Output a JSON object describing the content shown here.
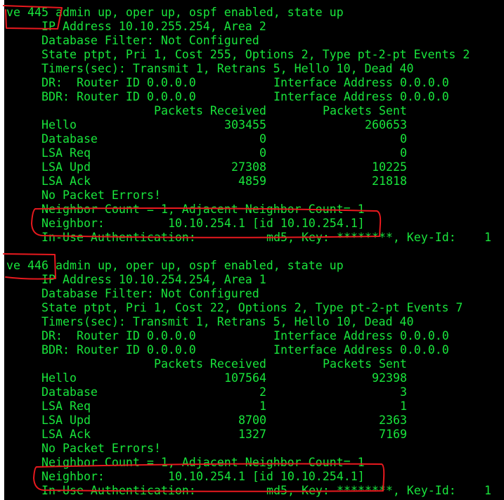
{
  "colors": {
    "background": "#000000",
    "text": "#19e53c",
    "annotation": "#e8191e"
  },
  "sections": [
    {
      "interface": "ve 445",
      "status": "admin up, oper up, ospf enabled, state up",
      "ip_line": "IP Address 10.10.255.254, Area 2",
      "filter_line": "Database Filter: Not Configured",
      "state_line": "State ptpt, Pri 1, Cost 255, Options 2, Type pt-2-pt Events 2",
      "timers_line": "Timers(sec): Transmit 1, Retrans 5, Hello 10, Dead 40",
      "dr": {
        "label": "DR:  Router ID 0.0.0.0",
        "iface": "Interface Address 0.0.0.0"
      },
      "bdr": {
        "label": "BDR: Router ID 0.0.0.0",
        "iface": "Interface Address 0.0.0.0"
      },
      "headers": {
        "received": "Packets Received",
        "sent": "Packets Sent"
      },
      "rows": [
        {
          "label": "Hello",
          "received": "303455",
          "sent": "260653"
        },
        {
          "label": "Database",
          "received": "0",
          "sent": "0"
        },
        {
          "label": "LSA Req",
          "received": "0",
          "sent": "0"
        },
        {
          "label": "LSA Upd",
          "received": "27308",
          "sent": "10225"
        },
        {
          "label": "LSA Ack",
          "received": "4859",
          "sent": "21818"
        }
      ],
      "errors_line": "No Packet Errors!",
      "neighbor_count_line": "Neighbor Count = 1, Adjacent Neighbor Count= 1",
      "neighbor": {
        "label": "Neighbor:",
        "value": "10.10.254.1 [id 10.10.254.1]"
      },
      "auth": {
        "label": "In-Use Authentication:",
        "value": "md5, Key: ********, Key-Id:",
        "key_id": "1"
      }
    },
    {
      "interface": "ve 446",
      "status": "admin up, oper up, ospf enabled, state up",
      "ip_line": "IP Address 10.10.254.254, Area 1",
      "filter_line": "Database Filter: Not Configured",
      "state_line": "State ptpt, Pri 1, Cost 22, Options 2, Type pt-2-pt Events 7",
      "timers_line": "Timers(sec): Transmit 1, Retrans 5, Hello 10, Dead 40",
      "dr": {
        "label": "DR:  Router ID 0.0.0.0",
        "iface": "Interface Address 0.0.0.0"
      },
      "bdr": {
        "label": "BDR: Router ID 0.0.0.0",
        "iface": "Interface Address 0.0.0.0"
      },
      "headers": {
        "received": "Packets Received",
        "sent": "Packets Sent"
      },
      "rows": [
        {
          "label": "Hello",
          "received": "107564",
          "sent": "92398"
        },
        {
          "label": "Database",
          "received": "2",
          "sent": "3"
        },
        {
          "label": "LSA Req",
          "received": "1",
          "sent": "1"
        },
        {
          "label": "LSA Upd",
          "received": "8700",
          "sent": "2363"
        },
        {
          "label": "LSA Ack",
          "received": "1327",
          "sent": "7169"
        }
      ],
      "errors_line": "No Packet Errors!",
      "neighbor_count_line": "Neighbor Count = 1, Adjacent Neighbor Count= 1",
      "neighbor": {
        "label": "Neighbor:",
        "value": "10.10.254.1 [id 10.10.254.1]"
      },
      "auth": {
        "label": "In-Use Authentication:",
        "value": "md5, Key: ********, Key-Id:",
        "key_id": "1"
      }
    }
  ]
}
